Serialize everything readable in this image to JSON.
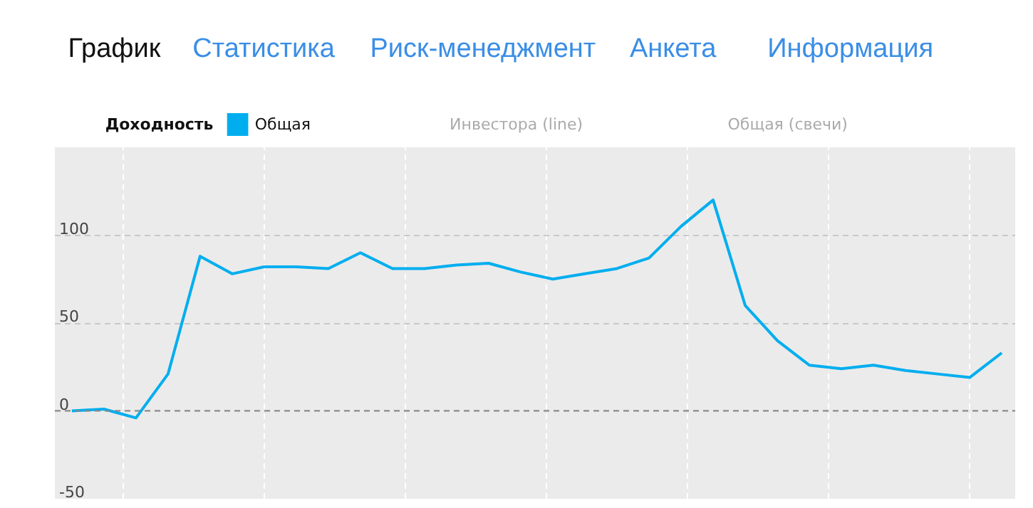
{
  "chart_data": {
    "type": "line",
    "title": "Доходность",
    "annotations": [
      "График",
      "Статистика",
      "Риск-менеджмент",
      "Анкета",
      "Информация",
      "Инвестора (line)",
      "Общая (свечи)"
    ],
    "categories": [
      null,
      null,
      null,
      null,
      null,
      null,
      null,
      null,
      null,
      null,
      null,
      null,
      null,
      null,
      null,
      null,
      null,
      null,
      null,
      null,
      null,
      null,
      null,
      null,
      null,
      null,
      null,
      null,
      null,
      null
    ],
    "series": [
      {
        "name": "Общая",
        "color": "#00aeef",
        "values": [
          0,
          1,
          -4,
          21,
          88,
          78,
          82,
          82,
          81,
          90,
          81,
          81,
          83,
          84,
          79,
          75,
          78,
          81,
          87,
          105,
          120,
          60,
          40,
          26,
          24,
          26,
          23,
          21,
          19,
          33
        ]
      }
    ],
    "ref_lines": [
      {
        "axis": "y",
        "value": 0,
        "color": "#888888",
        "line_style": "dashed"
      }
    ],
    "ylim": [
      -50,
      150
    ],
    "yticks": [
      -50,
      0,
      50,
      100
    ],
    "grid": true,
    "legend": "top left",
    "tick_labels": "y"
  }
}
